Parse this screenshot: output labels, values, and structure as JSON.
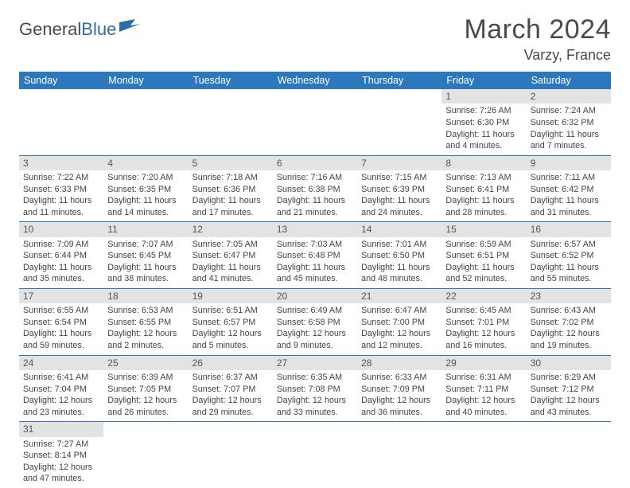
{
  "colors": {
    "header_bg": "#2d78bd",
    "header_text": "#ffffff",
    "daynum_bg": "#e3e3e3",
    "border": "#2d78bd",
    "logo_gray": "#4a4a4a",
    "logo_blue": "#2d6ea8"
  },
  "logo": {
    "part1": "General",
    "part2": "Blue"
  },
  "title": "March 2024",
  "location": "Varzy, France",
  "weekdays": [
    "Sunday",
    "Monday",
    "Tuesday",
    "Wednesday",
    "Thursday",
    "Friday",
    "Saturday"
  ],
  "weeks": [
    [
      null,
      null,
      null,
      null,
      null,
      {
        "n": "1",
        "sr": "Sunrise: 7:26 AM",
        "ss": "Sunset: 6:30 PM",
        "dl": "Daylight: 11 hours and 4 minutes."
      },
      {
        "n": "2",
        "sr": "Sunrise: 7:24 AM",
        "ss": "Sunset: 6:32 PM",
        "dl": "Daylight: 11 hours and 7 minutes."
      }
    ],
    [
      {
        "n": "3",
        "sr": "Sunrise: 7:22 AM",
        "ss": "Sunset: 6:33 PM",
        "dl": "Daylight: 11 hours and 11 minutes."
      },
      {
        "n": "4",
        "sr": "Sunrise: 7:20 AM",
        "ss": "Sunset: 6:35 PM",
        "dl": "Daylight: 11 hours and 14 minutes."
      },
      {
        "n": "5",
        "sr": "Sunrise: 7:18 AM",
        "ss": "Sunset: 6:36 PM",
        "dl": "Daylight: 11 hours and 17 minutes."
      },
      {
        "n": "6",
        "sr": "Sunrise: 7:16 AM",
        "ss": "Sunset: 6:38 PM",
        "dl": "Daylight: 11 hours and 21 minutes."
      },
      {
        "n": "7",
        "sr": "Sunrise: 7:15 AM",
        "ss": "Sunset: 6:39 PM",
        "dl": "Daylight: 11 hours and 24 minutes."
      },
      {
        "n": "8",
        "sr": "Sunrise: 7:13 AM",
        "ss": "Sunset: 6:41 PM",
        "dl": "Daylight: 11 hours and 28 minutes."
      },
      {
        "n": "9",
        "sr": "Sunrise: 7:11 AM",
        "ss": "Sunset: 6:42 PM",
        "dl": "Daylight: 11 hours and 31 minutes."
      }
    ],
    [
      {
        "n": "10",
        "sr": "Sunrise: 7:09 AM",
        "ss": "Sunset: 6:44 PM",
        "dl": "Daylight: 11 hours and 35 minutes."
      },
      {
        "n": "11",
        "sr": "Sunrise: 7:07 AM",
        "ss": "Sunset: 6:45 PM",
        "dl": "Daylight: 11 hours and 38 minutes."
      },
      {
        "n": "12",
        "sr": "Sunrise: 7:05 AM",
        "ss": "Sunset: 6:47 PM",
        "dl": "Daylight: 11 hours and 41 minutes."
      },
      {
        "n": "13",
        "sr": "Sunrise: 7:03 AM",
        "ss": "Sunset: 6:48 PM",
        "dl": "Daylight: 11 hours and 45 minutes."
      },
      {
        "n": "14",
        "sr": "Sunrise: 7:01 AM",
        "ss": "Sunset: 6:50 PM",
        "dl": "Daylight: 11 hours and 48 minutes."
      },
      {
        "n": "15",
        "sr": "Sunrise: 6:59 AM",
        "ss": "Sunset: 6:51 PM",
        "dl": "Daylight: 11 hours and 52 minutes."
      },
      {
        "n": "16",
        "sr": "Sunrise: 6:57 AM",
        "ss": "Sunset: 6:52 PM",
        "dl": "Daylight: 11 hours and 55 minutes."
      }
    ],
    [
      {
        "n": "17",
        "sr": "Sunrise: 6:55 AM",
        "ss": "Sunset: 6:54 PM",
        "dl": "Daylight: 11 hours and 59 minutes."
      },
      {
        "n": "18",
        "sr": "Sunrise: 6:53 AM",
        "ss": "Sunset: 6:55 PM",
        "dl": "Daylight: 12 hours and 2 minutes."
      },
      {
        "n": "19",
        "sr": "Sunrise: 6:51 AM",
        "ss": "Sunset: 6:57 PM",
        "dl": "Daylight: 12 hours and 5 minutes."
      },
      {
        "n": "20",
        "sr": "Sunrise: 6:49 AM",
        "ss": "Sunset: 6:58 PM",
        "dl": "Daylight: 12 hours and 9 minutes."
      },
      {
        "n": "21",
        "sr": "Sunrise: 6:47 AM",
        "ss": "Sunset: 7:00 PM",
        "dl": "Daylight: 12 hours and 12 minutes."
      },
      {
        "n": "22",
        "sr": "Sunrise: 6:45 AM",
        "ss": "Sunset: 7:01 PM",
        "dl": "Daylight: 12 hours and 16 minutes."
      },
      {
        "n": "23",
        "sr": "Sunrise: 6:43 AM",
        "ss": "Sunset: 7:02 PM",
        "dl": "Daylight: 12 hours and 19 minutes."
      }
    ],
    [
      {
        "n": "24",
        "sr": "Sunrise: 6:41 AM",
        "ss": "Sunset: 7:04 PM",
        "dl": "Daylight: 12 hours and 23 minutes."
      },
      {
        "n": "25",
        "sr": "Sunrise: 6:39 AM",
        "ss": "Sunset: 7:05 PM",
        "dl": "Daylight: 12 hours and 26 minutes."
      },
      {
        "n": "26",
        "sr": "Sunrise: 6:37 AM",
        "ss": "Sunset: 7:07 PM",
        "dl": "Daylight: 12 hours and 29 minutes."
      },
      {
        "n": "27",
        "sr": "Sunrise: 6:35 AM",
        "ss": "Sunset: 7:08 PM",
        "dl": "Daylight: 12 hours and 33 minutes."
      },
      {
        "n": "28",
        "sr": "Sunrise: 6:33 AM",
        "ss": "Sunset: 7:09 PM",
        "dl": "Daylight: 12 hours and 36 minutes."
      },
      {
        "n": "29",
        "sr": "Sunrise: 6:31 AM",
        "ss": "Sunset: 7:11 PM",
        "dl": "Daylight: 12 hours and 40 minutes."
      },
      {
        "n": "30",
        "sr": "Sunrise: 6:29 AM",
        "ss": "Sunset: 7:12 PM",
        "dl": "Daylight: 12 hours and 43 minutes."
      }
    ],
    [
      {
        "n": "31",
        "sr": "Sunrise: 7:27 AM",
        "ss": "Sunset: 8:14 PM",
        "dl": "Daylight: 12 hours and 47 minutes."
      },
      null,
      null,
      null,
      null,
      null,
      null
    ]
  ]
}
